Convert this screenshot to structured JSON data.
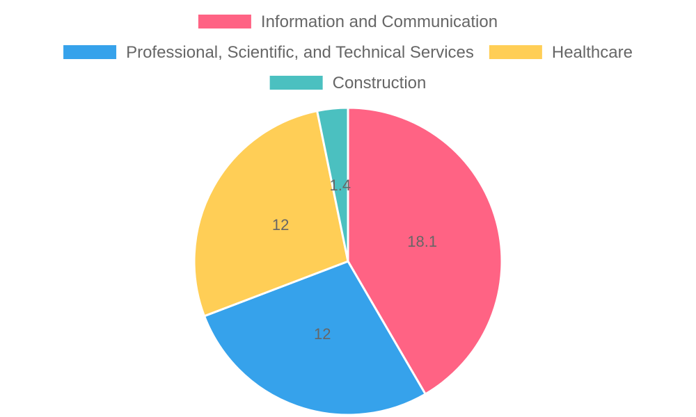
{
  "chart_data": {
    "type": "pie",
    "title": "",
    "legend_position": "top",
    "slices": [
      {
        "label": "Information and Communication",
        "value": 18.1,
        "color": "#FF6384"
      },
      {
        "label": "Professional, Scientific, and Technical Services",
        "value": 12,
        "color": "#36A2EB"
      },
      {
        "label": "Healthcare",
        "value": 12,
        "color": "#FFCE56"
      },
      {
        "label": "Construction",
        "value": 1.4,
        "color": "#4BC0C0"
      }
    ]
  }
}
